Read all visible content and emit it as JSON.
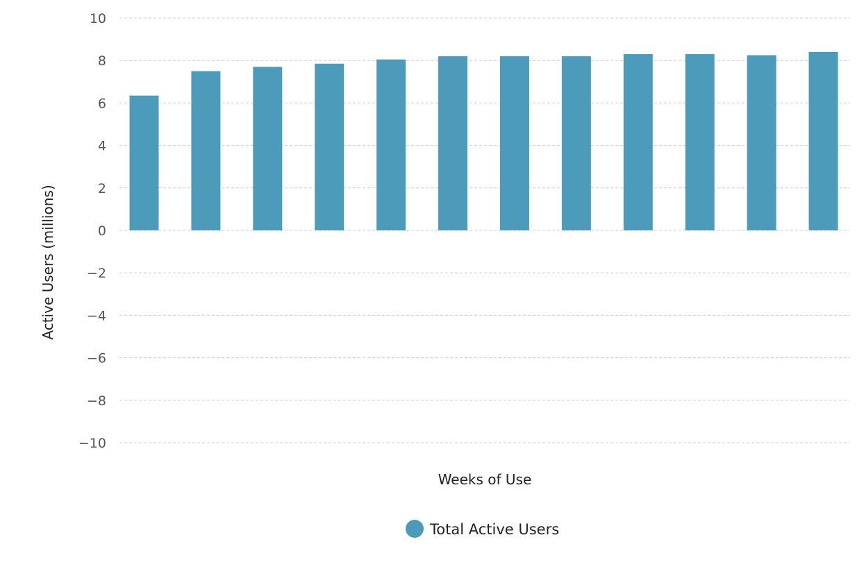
{
  "chart_data": {
    "type": "bar",
    "title": "",
    "xlabel": "Weeks of Use",
    "ylabel": "Active Users (millions)",
    "ylim": [
      -10,
      10
    ],
    "yticks": [
      10,
      8,
      6,
      4,
      2,
      0,
      -2,
      -4,
      -6,
      -8,
      -10
    ],
    "grid": true,
    "legend_position": "bottom-center",
    "categories": [
      "",
      "",
      "",
      "",
      "",
      "",
      "",
      "",
      "",
      "",
      "",
      ""
    ],
    "series": [
      {
        "name": "Total Active Users",
        "color": "#4d9bbb",
        "values": [
          6.35,
          7.5,
          7.7,
          7.85,
          8.05,
          8.2,
          8.2,
          8.2,
          8.3,
          8.3,
          8.25,
          8.4
        ]
      }
    ]
  }
}
